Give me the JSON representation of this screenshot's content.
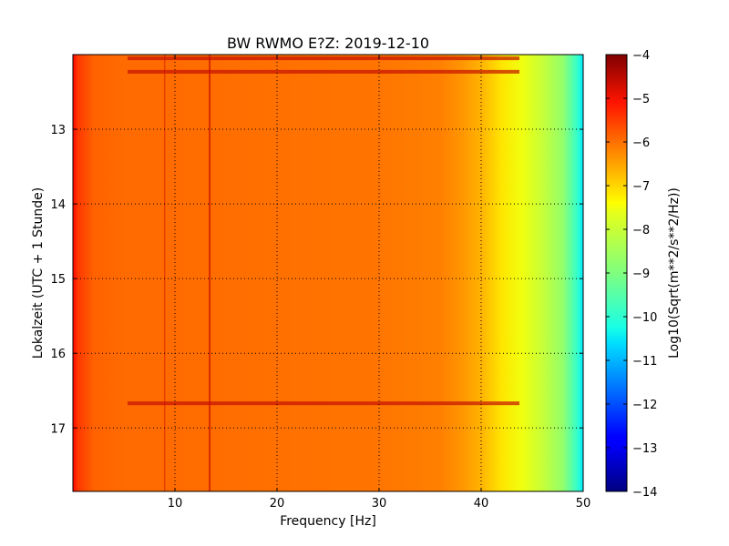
{
  "chart_data": {
    "type": "heatmap",
    "title": "BW RWMO E?Z: 2019-12-10",
    "xlabel": "Frequency [Hz]",
    "ylabel": "Lokalzeit (UTC + 1 Stunde)",
    "colorbar_label": "Log10(Sqrt(m**2/s**2/Hz))",
    "xlim": [
      0,
      50
    ],
    "ylim": [
      17.85,
      12.0
    ],
    "x_ticks": [
      10,
      20,
      30,
      40,
      50
    ],
    "y_ticks": [
      13,
      14,
      15,
      16,
      17
    ],
    "colorbar_range": [
      -14,
      -4
    ],
    "colorbar_ticks": [
      -4,
      -5,
      -6,
      -7,
      -8,
      -9,
      -10,
      -11,
      -12,
      -13,
      -14
    ],
    "colormap": "jet",
    "grid": true,
    "spectral_profile": {
      "frequency_hz": [
        0,
        0.5,
        2,
        5,
        10,
        20,
        30,
        36,
        38,
        40,
        42,
        44,
        46,
        48,
        49.5,
        50
      ],
      "log10_amplitude": [
        -5.3,
        -5.8,
        -6.2,
        -6.3,
        -6.3,
        -6.35,
        -6.4,
        -6.5,
        -6.7,
        -7.0,
        -7.5,
        -7.9,
        -8.3,
        -8.8,
        -9.8,
        -10.5
      ]
    },
    "narrowband_lines_hz": [
      9.0,
      13.4
    ],
    "broadband_events_hour": [
      12.05,
      12.23,
      16.67
    ]
  }
}
